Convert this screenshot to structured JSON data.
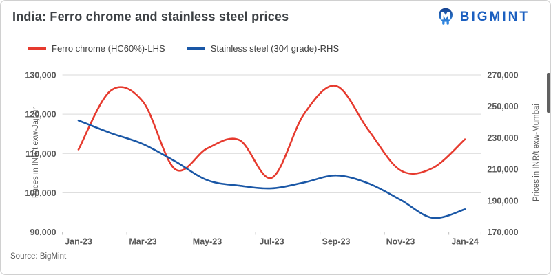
{
  "header": {
    "title": "India: Ferro chrome and stainless steel prices",
    "logo_text": "BIGMINT"
  },
  "legend": {
    "items": [
      {
        "label": "Ferro chrome (HC60%)-LHS",
        "color": "#e63a2e"
      },
      {
        "label": "Stainless steel (304 grade)-RHS",
        "color": "#1a57a6"
      }
    ]
  },
  "footer": {
    "source": "Source: BigMint"
  },
  "chart_data": {
    "type": "line",
    "title": "India: Ferro chrome and stainless steel prices",
    "x": [
      "Jan-23",
      "Feb-23",
      "Mar-23",
      "Apr-23",
      "May-23",
      "Jun-23",
      "Jul-23",
      "Aug-23",
      "Sep-23",
      "Oct-23",
      "Nov-23",
      "Dec-23",
      "Jan-24"
    ],
    "x_tick_labels": [
      "Jan-23",
      "Mar-23",
      "May-23",
      "Jul-23",
      "Sep-23",
      "Nov-23",
      "Jan-24"
    ],
    "series": [
      {
        "name": "Ferro chrome (HC60%)-LHS",
        "axis": "left",
        "color": "#e63a2e",
        "values": [
          111000,
          126000,
          123200,
          106000,
          111300,
          113400,
          103800,
          120000,
          127200,
          116000,
          105700,
          106300,
          113600
        ]
      },
      {
        "name": "Stainless steel (304 grade)-RHS",
        "axis": "right",
        "color": "#1a57a6",
        "values": [
          241000,
          233000,
          226000,
          215000,
          203000,
          199500,
          197800,
          201500,
          206000,
          201000,
          190500,
          179000,
          184500
        ]
      }
    ],
    "left_axis": {
      "label": "Prices in INR/t exw-Jajpur",
      "min": 90000,
      "max": 130000,
      "step": 10000,
      "ticks": [
        "130,000",
        "120,000",
        "110,000",
        "100,000",
        "90,000"
      ]
    },
    "right_axis": {
      "label": "Prices in INR/t exw-Mumbai",
      "min": 170000,
      "max": 270000,
      "step": 20000,
      "ticks": [
        "270,000",
        "250,000",
        "230,000",
        "210,000",
        "190,000",
        "170,000"
      ]
    },
    "grid": "horizontal",
    "legend_position": "top-left",
    "smoothing": true
  }
}
